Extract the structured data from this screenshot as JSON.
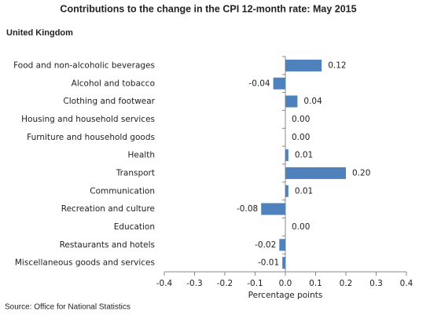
{
  "chart_data": {
    "type": "bar",
    "orientation": "horizontal",
    "title": "Contributions to the change in the CPI 12-month rate: May 2015",
    "subtitle": "United Kingdom",
    "x_label": "Percentage points",
    "source": "Source: Office for National Statistics",
    "categories": [
      "Food and non-alcoholic beverages",
      "Alcohol and tobacco",
      "Clothing and footwear",
      "Housing and household services",
      "Furniture and household goods",
      "Health",
      "Transport",
      "Communication",
      "Recreation and culture",
      "Education",
      "Restaurants and hotels",
      "Miscellaneous goods and services"
    ],
    "values": [
      0.12,
      -0.04,
      0.04,
      0,
      0,
      0.01,
      0.2,
      0.01,
      -0.08,
      0,
      -0.02,
      -0.01
    ],
    "value_labels": [
      "0.12",
      "-0.04",
      "0.04",
      "0.00",
      "0.00",
      "0.01",
      "0.20",
      "0.01",
      "-0.08",
      "0.00",
      "-0.02",
      "-0.01"
    ],
    "color": "#4f81bd",
    "xlim": [
      -0.4,
      0.4
    ],
    "xticks": [
      -0.4,
      -0.3,
      -0.2,
      -0.1,
      {
        "value": 0,
        "label": "0.0"
      },
      0.1,
      0.2,
      0.3,
      0.4
    ],
    "grid": false
  }
}
